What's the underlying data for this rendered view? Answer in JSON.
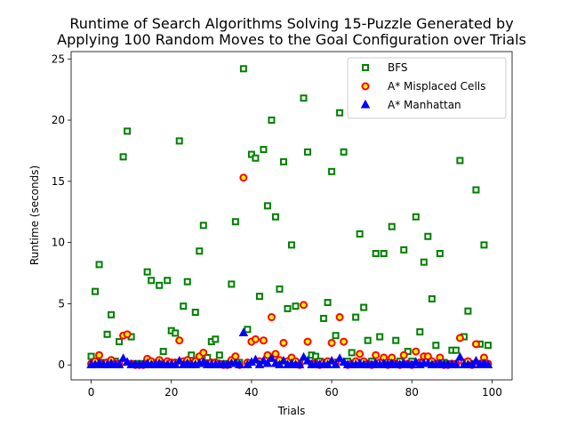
{
  "chart_data": {
    "type": "scatter",
    "title_lines": [
      "Runtime of Search Algorithms Solving 15-Puzzle Generated by",
      "Applying 100 Random Moves to the Goal Configuration over Trials"
    ],
    "xlabel": "Trials",
    "ylabel": "Runtime (seconds)",
    "xlim": [
      -5,
      105
    ],
    "ylim": [
      -1.22,
      25.6
    ],
    "xticks": [
      0,
      20,
      40,
      60,
      80,
      100
    ],
    "yticks": [
      0,
      5,
      10,
      15,
      20,
      25
    ],
    "legend_position": "upper right",
    "series": [
      {
        "name": "BFS",
        "marker": "square",
        "edge_color": "#008000",
        "face_color": "#ffffff",
        "x": [
          0,
          1,
          2,
          3,
          4,
          5,
          6,
          7,
          8,
          9,
          10,
          11,
          12,
          13,
          14,
          15,
          16,
          17,
          18,
          19,
          20,
          21,
          22,
          23,
          24,
          25,
          26,
          27,
          28,
          29,
          30,
          31,
          32,
          33,
          34,
          35,
          36,
          37,
          38,
          39,
          40,
          41,
          42,
          43,
          44,
          45,
          46,
          47,
          48,
          49,
          50,
          51,
          52,
          53,
          54,
          55,
          56,
          57,
          58,
          59,
          60,
          61,
          62,
          63,
          64,
          65,
          66,
          67,
          68,
          69,
          70,
          71,
          72,
          73,
          74,
          75,
          76,
          77,
          78,
          79,
          80,
          81,
          82,
          83,
          84,
          85,
          86,
          87,
          88,
          89,
          90,
          91,
          92,
          93,
          94,
          95,
          96,
          97,
          98,
          99
        ],
        "values": [
          0.7,
          6.0,
          8.2,
          0.2,
          2.5,
          4.1,
          0.3,
          1.9,
          17.0,
          19.1,
          2.3,
          0.1,
          0.1,
          0.1,
          7.6,
          6.9,
          0.2,
          6.5,
          1.1,
          6.9,
          2.8,
          2.6,
          18.3,
          4.8,
          6.8,
          0.8,
          4.3,
          9.3,
          11.4,
          0.6,
          1.9,
          2.1,
          0.8,
          0.1,
          0.1,
          6.6,
          11.7,
          0.2,
          24.2,
          2.9,
          17.2,
          16.9,
          5.6,
          17.6,
          13.0,
          20.0,
          12.1,
          6.2,
          16.6,
          4.6,
          9.8,
          4.8,
          0.1,
          21.8,
          17.4,
          0.8,
          0.7,
          0.3,
          3.8,
          5.1,
          15.8,
          2.4,
          20.6,
          17.4,
          0.3,
          1.0,
          3.9,
          10.7,
          4.7,
          2.0,
          0.3,
          9.1,
          2.3,
          9.1,
          0.2,
          11.3,
          2.0,
          0.3,
          9.4,
          1.1,
          0.3,
          12.1,
          2.7,
          8.4,
          10.5,
          5.4,
          1.6,
          9.1,
          0.2,
          0.1,
          1.2,
          1.2,
          16.7,
          2.3,
          4.4,
          0.1,
          14.3,
          1.7,
          9.8,
          1.6
        ]
      },
      {
        "name": "A* Misplaced Cells",
        "marker": "circle",
        "edge_color": "#ff0000",
        "face_color": "#ffff00",
        "x": [
          0,
          1,
          2,
          3,
          4,
          5,
          6,
          7,
          8,
          9,
          10,
          11,
          12,
          13,
          14,
          15,
          16,
          17,
          18,
          19,
          20,
          21,
          22,
          23,
          24,
          25,
          26,
          27,
          28,
          29,
          30,
          31,
          32,
          33,
          34,
          35,
          36,
          37,
          38,
          39,
          40,
          41,
          42,
          43,
          44,
          45,
          46,
          47,
          48,
          49,
          50,
          51,
          52,
          53,
          54,
          55,
          56,
          57,
          58,
          59,
          60,
          61,
          62,
          63,
          64,
          65,
          66,
          67,
          68,
          69,
          70,
          71,
          72,
          73,
          74,
          75,
          76,
          77,
          78,
          79,
          80,
          81,
          82,
          83,
          84,
          85,
          86,
          87,
          88,
          89,
          90,
          91,
          92,
          93,
          94,
          95,
          96,
          97,
          98,
          99
        ],
        "values": [
          0.1,
          0.3,
          0.8,
          0.1,
          0.2,
          0.4,
          0.1,
          0.1,
          2.4,
          2.5,
          0.1,
          0.0,
          0.0,
          0.0,
          0.5,
          0.3,
          0.1,
          0.4,
          0.1,
          0.3,
          0.2,
          0.2,
          2.0,
          0.3,
          0.4,
          0.1,
          0.3,
          0.7,
          1.0,
          0.1,
          0.2,
          0.2,
          0.1,
          0.0,
          0.0,
          0.4,
          0.7,
          0.0,
          15.3,
          0.2,
          1.9,
          2.1,
          0.3,
          2.0,
          0.8,
          3.9,
          0.9,
          0.4,
          1.8,
          0.3,
          0.6,
          0.3,
          0.0,
          4.9,
          1.9,
          0.1,
          0.1,
          0.0,
          0.2,
          0.3,
          1.8,
          0.2,
          3.9,
          1.9,
          0.0,
          0.1,
          0.3,
          0.9,
          0.3,
          0.1,
          0.0,
          0.8,
          0.2,
          0.6,
          0.0,
          0.6,
          0.1,
          0.0,
          0.8,
          0.1,
          0.0,
          1.1,
          0.2,
          0.7,
          0.7,
          0.3,
          0.1,
          0.6,
          0.0,
          0.0,
          0.1,
          0.1,
          2.2,
          0.2,
          0.3,
          0.0,
          1.7,
          0.1,
          0.6,
          0.1
        ]
      },
      {
        "name": "A* Manhattan",
        "marker": "triangle",
        "edge_color": "#0000ff",
        "face_color": "#0000ff",
        "x": [
          0,
          1,
          2,
          3,
          4,
          5,
          6,
          7,
          8,
          9,
          10,
          11,
          12,
          13,
          14,
          15,
          16,
          17,
          18,
          19,
          20,
          21,
          22,
          23,
          24,
          25,
          26,
          27,
          28,
          29,
          30,
          31,
          32,
          33,
          34,
          35,
          36,
          37,
          38,
          39,
          40,
          41,
          42,
          43,
          44,
          45,
          46,
          47,
          48,
          49,
          50,
          51,
          52,
          53,
          54,
          55,
          56,
          57,
          58,
          59,
          60,
          61,
          62,
          63,
          64,
          65,
          66,
          67,
          68,
          69,
          70,
          71,
          72,
          73,
          74,
          75,
          76,
          77,
          78,
          79,
          80,
          81,
          82,
          83,
          84,
          85,
          86,
          87,
          88,
          89,
          90,
          91,
          92,
          93,
          94,
          95,
          96,
          97,
          98,
          99
        ],
        "values": [
          0.0,
          0.0,
          0.1,
          0.0,
          0.0,
          0.1,
          0.0,
          0.0,
          0.5,
          0.2,
          0.0,
          0.0,
          0.0,
          0.0,
          0.1,
          0.0,
          0.0,
          0.1,
          0.0,
          0.0,
          0.0,
          0.0,
          0.3,
          0.0,
          0.1,
          0.0,
          0.0,
          0.1,
          0.2,
          0.0,
          0.0,
          0.0,
          0.0,
          0.0,
          0.0,
          0.1,
          0.1,
          0.0,
          2.6,
          0.0,
          0.2,
          0.4,
          0.0,
          0.3,
          0.1,
          0.5,
          0.1,
          0.0,
          0.3,
          0.0,
          0.1,
          0.0,
          0.0,
          0.6,
          0.3,
          0.0,
          0.0,
          0.0,
          0.0,
          0.0,
          0.3,
          0.0,
          0.5,
          0.2,
          0.0,
          0.0,
          0.0,
          0.1,
          0.0,
          0.0,
          0.0,
          0.1,
          0.0,
          0.1,
          0.0,
          0.1,
          0.0,
          0.0,
          0.1,
          0.0,
          0.0,
          0.2,
          0.0,
          0.1,
          0.1,
          0.0,
          0.0,
          0.1,
          0.0,
          0.0,
          0.0,
          0.0,
          0.6,
          0.0,
          0.0,
          0.0,
          0.3,
          0.0,
          0.1,
          0.0
        ]
      }
    ]
  }
}
